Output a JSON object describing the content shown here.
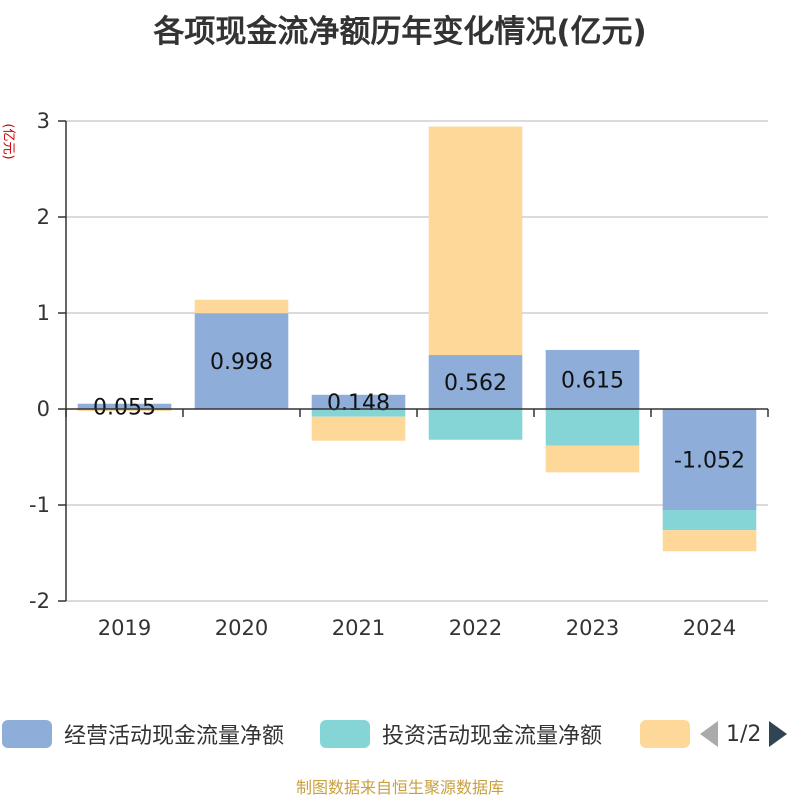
{
  "header": {
    "title": "各项现金流净额历年变化情况(亿元)"
  },
  "axis": {
    "unit_label": "(亿元)"
  },
  "legend": {
    "items": [
      {
        "label": "经营活动现金流量净额",
        "color": "#8eadd9"
      },
      {
        "label": "投资活动现金流量净额",
        "color": "#86d5d6"
      },
      {
        "label": "",
        "color": "#fdd898"
      }
    ],
    "page_indicator": "1/2"
  },
  "footer": {
    "source": "制图数据来自恒生聚源数据库"
  },
  "chart_data": {
    "type": "bar",
    "stacked": true,
    "categories": [
      "2019",
      "2020",
      "2021",
      "2022",
      "2023",
      "2024"
    ],
    "series": [
      {
        "name": "经营活动现金流量净额",
        "color": "#8eadd9",
        "values": [
          0.055,
          0.998,
          0.148,
          0.562,
          0.615,
          -1.052
        ],
        "show_labels": true
      },
      {
        "name": "投资活动现金流量净额",
        "color": "#86d5d6",
        "values": [
          0.0,
          0.0,
          -0.08,
          -0.32,
          -0.38,
          -0.21
        ]
      },
      {
        "name": "",
        "color": "#fdd898",
        "values": [
          -0.02,
          0.14,
          -0.25,
          2.38,
          -0.28,
          -0.22
        ]
      }
    ],
    "ylim": [
      -2,
      3
    ],
    "yticks": [
      -2,
      -1,
      0,
      1,
      2,
      3
    ],
    "grid": true,
    "legend_position": "bottom"
  }
}
